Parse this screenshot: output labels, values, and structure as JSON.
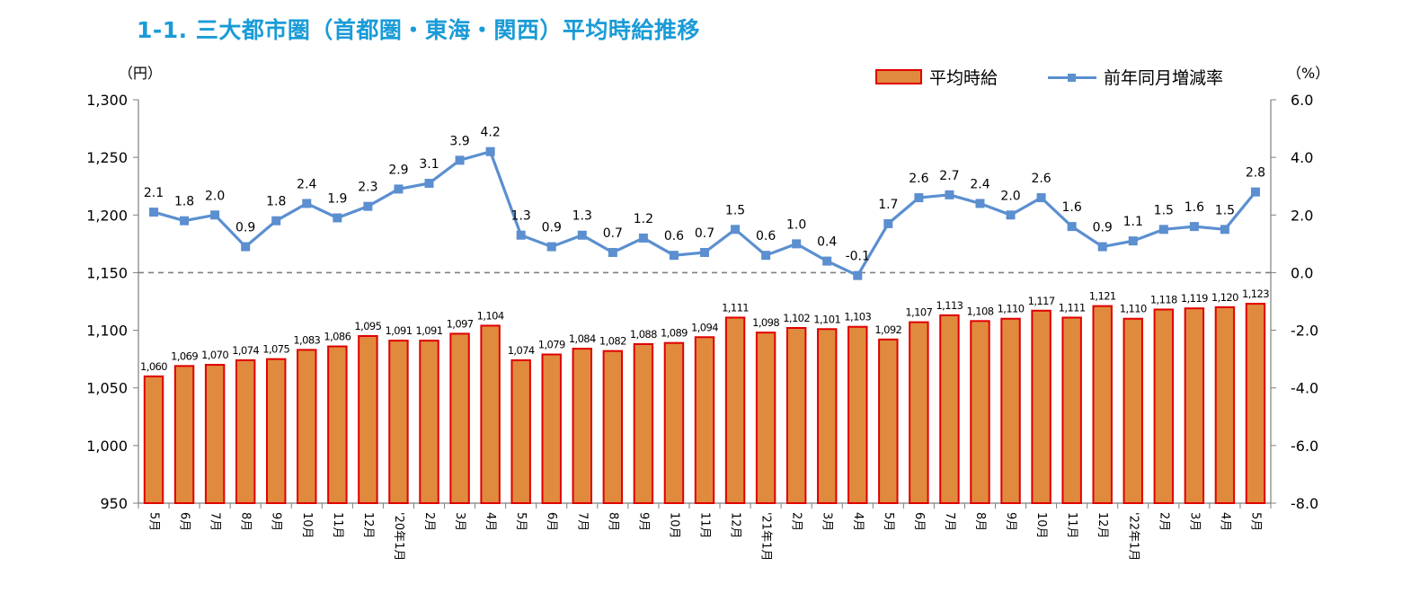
{
  "title": "1-1.  三大都市圏（首都圏・東海・関西）平均時給推移",
  "left_unit": "（円）",
  "right_unit": "（%）",
  "colors": {
    "title": "#1a9bd7",
    "bar_fill": "#e08a3e",
    "bar_border": "#e00000",
    "line": "#5b8fd0",
    "axis": "#7f7f7f"
  },
  "legend": {
    "bar_label": "平均時給",
    "line_label": "前年同月増減率"
  },
  "chart_data": {
    "type": "bar",
    "categories": [
      "5月",
      "6月",
      "7月",
      "8月",
      "9月",
      "10月",
      "11月",
      "12月",
      "'20年1月",
      "2月",
      "3月",
      "4月",
      "5月",
      "6月",
      "7月",
      "8月",
      "9月",
      "10月",
      "11月",
      "12月",
      "'21年1月",
      "2月",
      "3月",
      "4月",
      "5月",
      "6月",
      "7月",
      "8月",
      "9月",
      "10月",
      "11月",
      "12月",
      "'22年1月",
      "2月",
      "3月",
      "4月",
      "5月"
    ],
    "series": [
      {
        "name": "平均時給",
        "type": "bar",
        "axis": "left",
        "values": [
          1060,
          1069,
          1070,
          1074,
          1075,
          1083,
          1086,
          1095,
          1091,
          1091,
          1097,
          1104,
          1074,
          1079,
          1084,
          1082,
          1088,
          1089,
          1094,
          1111,
          1098,
          1102,
          1101,
          1103,
          1092,
          1107,
          1113,
          1108,
          1110,
          1117,
          1111,
          1121,
          1110,
          1118,
          1119,
          1120,
          1123
        ],
        "labels": [
          "1,060",
          "1,069",
          "1,070",
          "1,074",
          "1,075",
          "1,083",
          "1,086",
          "1,095",
          "1,091",
          "1,091",
          "1,097",
          "1,104",
          "1,074",
          "1,079",
          "1,084",
          "1,082",
          "1,088",
          "1,089",
          "1,094",
          "1,111",
          "1,098",
          "1,102",
          "1,101",
          "1,103",
          "1,092",
          "1,107",
          "1,113",
          "1,108",
          "1,110",
          "1,117",
          "1,111",
          "1,121",
          "1,110",
          "1,118",
          "1,119",
          "1,120",
          "1,123"
        ]
      },
      {
        "name": "前年同月増減率",
        "type": "line",
        "axis": "right",
        "values": [
          2.1,
          1.8,
          2.0,
          0.9,
          1.8,
          2.4,
          1.9,
          2.3,
          2.9,
          3.1,
          3.9,
          4.2,
          1.3,
          0.9,
          1.3,
          0.7,
          1.2,
          0.6,
          0.7,
          1.5,
          0.6,
          1.0,
          0.4,
          -0.1,
          1.7,
          2.6,
          2.7,
          2.4,
          2.0,
          2.6,
          1.6,
          0.9,
          1.1,
          1.5,
          1.6,
          1.5,
          2.8
        ],
        "labels": [
          "2.1",
          "1.8",
          "2.0",
          "0.9",
          "1.8",
          "2.4",
          "1.9",
          "2.3",
          "2.9",
          "3.1",
          "3.9",
          "4.2",
          "1.3",
          "0.9",
          "1.3",
          "0.7",
          "1.2",
          "0.6",
          "0.7",
          "1.5",
          "0.6",
          "1.0",
          "0.4",
          "-0.1",
          "1.7",
          "2.6",
          "2.7",
          "2.4",
          "2.0",
          "2.6",
          "1.6",
          "0.9",
          "1.1",
          "1.5",
          "1.6",
          "1.5",
          "2.8"
        ]
      }
    ],
    "y_left": {
      "ylim": [
        950,
        1300
      ],
      "ticks": [
        "950",
        "1,000",
        "1,050",
        "1,100",
        "1,150",
        "1,200",
        "1,250",
        "1,300"
      ]
    },
    "y_right": {
      "ylim": [
        -8.0,
        6.0
      ],
      "ticks": [
        "-8.0",
        "-6.0",
        "-4.0",
        "-2.0",
        "0.0",
        "2.0",
        "4.0",
        "6.0"
      ]
    },
    "zero_line_dashed": true,
    "grid": false,
    "legend_position": "top-right"
  }
}
